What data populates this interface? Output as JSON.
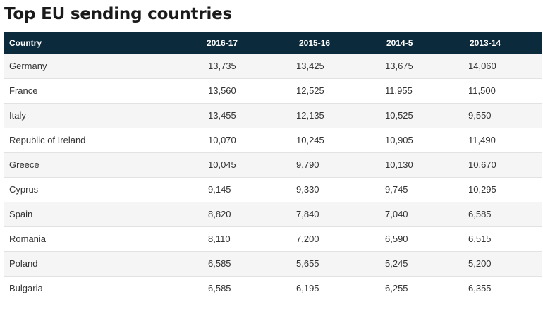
{
  "title": "Top EU sending countries",
  "table": {
    "headers": [
      "Country",
      "2016-17",
      "2015-16",
      "2014-5",
      "2013-14"
    ],
    "rows": [
      [
        "Germany",
        "13,735",
        "13,425",
        "13,675",
        "14,060"
      ],
      [
        "France",
        "13,560",
        "12,525",
        "11,955",
        "11,500"
      ],
      [
        "Italy",
        "13,455",
        "12,135",
        "10,525",
        "9,550"
      ],
      [
        "Republic of Ireland",
        "10,070",
        "10,245",
        "10,905",
        "11,490"
      ],
      [
        "Greece",
        "10,045",
        "9,790",
        "10,130",
        "10,670"
      ],
      [
        "Cyprus",
        "9,145",
        "9,330",
        "9,745",
        "10,295"
      ],
      [
        "Spain",
        "8,820",
        "7,840",
        "7,040",
        "6,585"
      ],
      [
        "Romania",
        "8,110",
        "7,200",
        "6,590",
        "6,515"
      ],
      [
        "Poland",
        "6,585",
        "5,655",
        "5,245",
        "5,200"
      ],
      [
        "Bulgaria",
        "6,585",
        "6,195",
        "6,255",
        "6,355"
      ]
    ]
  },
  "colors": {
    "header_background": "#0b2a3b",
    "header_text": "#ffffff",
    "stripe": "#f5f5f5"
  }
}
